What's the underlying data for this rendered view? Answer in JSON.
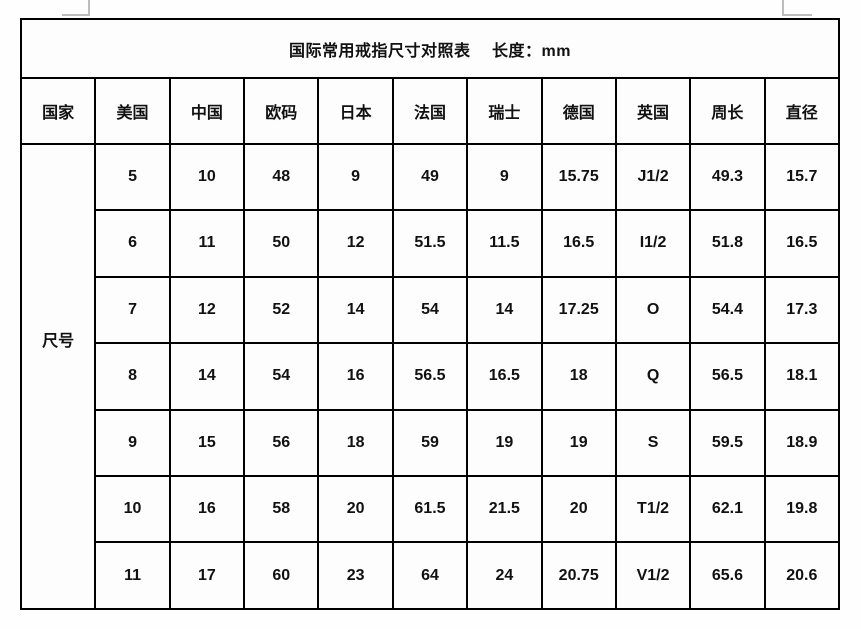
{
  "title": "国际常用戒指尺寸对照表　 长度：mm",
  "table": {
    "row_group_label": "尺号",
    "columns": [
      "国家",
      "美国",
      "中国",
      "欧码",
      "日本",
      "法国",
      "瑞士",
      "德国",
      "英国",
      "周长",
      "直径"
    ],
    "column_ids": [
      "country",
      "usa",
      "china",
      "eu",
      "japan",
      "france",
      "switzerland",
      "germany",
      "uk",
      "circumference",
      "diameter"
    ],
    "rows": [
      [
        "5",
        "10",
        "48",
        "9",
        "49",
        "9",
        "15.75",
        "J1/2",
        "49.3",
        "15.7"
      ],
      [
        "6",
        "11",
        "50",
        "12",
        "51.5",
        "11.5",
        "16.5",
        "I1/2",
        "51.8",
        "16.5"
      ],
      [
        "7",
        "12",
        "52",
        "14",
        "54",
        "14",
        "17.25",
        "O",
        "54.4",
        "17.3"
      ],
      [
        "8",
        "14",
        "54",
        "16",
        "56.5",
        "16.5",
        "18",
        "Q",
        "56.5",
        "18.1"
      ],
      [
        "9",
        "15",
        "56",
        "18",
        "59",
        "19",
        "19",
        "S",
        "59.5",
        "18.9"
      ],
      [
        "10",
        "16",
        "58",
        "20",
        "61.5",
        "21.5",
        "20",
        "T1/2",
        "62.1",
        "19.8"
      ],
      [
        "11",
        "17",
        "60",
        "23",
        "64",
        "24",
        "20.75",
        "V1/2",
        "65.6",
        "20.6"
      ]
    ]
  },
  "colors": {
    "border": "#000000",
    "text": "#111111",
    "background": "#fefefe",
    "artifact_gray": "#bdbdbd"
  }
}
